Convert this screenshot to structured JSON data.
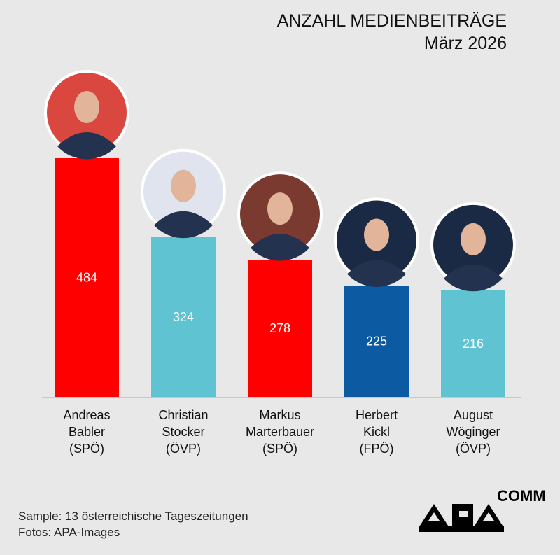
{
  "title": "ANZAHL MEDIENBEITRÄGE",
  "subtitle": "März 2026",
  "chart_data": {
    "type": "bar",
    "title": "ANZAHL MEDIENBEITRÄGE",
    "subtitle": "März 2026",
    "categories": [
      [
        "Andreas",
        "Babler",
        "(SPÖ)"
      ],
      [
        "Christian",
        "Stocker",
        "(ÖVP)"
      ],
      [
        "Markus",
        "Marterbauer",
        "(SPÖ)"
      ],
      [
        "Herbert",
        "Kickl",
        "(FPÖ)"
      ],
      [
        "August",
        "Wöginger",
        "(ÖVP)"
      ]
    ],
    "values": [
      484,
      324,
      278,
      225,
      216
    ],
    "colors": [
      "#ff0000",
      "#5fc3d2",
      "#ff0000",
      "#0b5aa2",
      "#5fc3d2"
    ],
    "party_colors": {
      "SPÖ": "#ff0000",
      "ÖVP": "#5fc3d2",
      "FPÖ": "#0b5aa2"
    },
    "ylim": [
      0,
      484
    ],
    "grid": false,
    "data_labels": true
  },
  "footer": {
    "sample": "Sample: 13 österreichische Tageszeitungen",
    "photos": "Fotos: APA-Images"
  },
  "logo": {
    "text": "APA",
    "suffix": "COMM"
  }
}
